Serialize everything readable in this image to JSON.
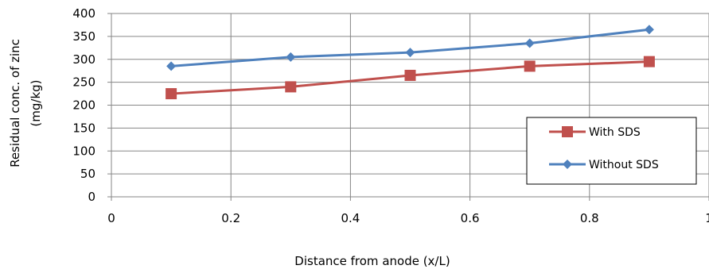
{
  "chart_data": {
    "type": "line",
    "xlabel": "Distance from anode (x/L)",
    "ylabel_lines": [
      "Residual conc. of zinc",
      "(mg/kg)"
    ],
    "xlim": [
      0,
      1
    ],
    "ylim": [
      0,
      400
    ],
    "x_ticks": [
      0,
      0.2,
      0.4,
      0.6,
      0.8,
      1
    ],
    "x_tick_labels": [
      "0",
      "0.2",
      "0.4",
      "0.6",
      "0.8",
      "1"
    ],
    "y_ticks": [
      0,
      50,
      100,
      150,
      200,
      250,
      300,
      350,
      400
    ],
    "y_tick_labels": [
      "0",
      "50",
      "100",
      "150",
      "200",
      "250",
      "300",
      "350",
      "400"
    ],
    "grid": true,
    "legend_position": "lower-right",
    "series": [
      {
        "name": "With SDS",
        "color": "#c0504d",
        "marker": "square",
        "x": [
          0.1,
          0.3,
          0.5,
          0.7,
          0.9
        ],
        "values": [
          225,
          240,
          265,
          285,
          295
        ]
      },
      {
        "name": "Without SDS",
        "color": "#4f81bd",
        "marker": "diamond",
        "x": [
          0.1,
          0.3,
          0.5,
          0.7,
          0.9
        ],
        "values": [
          285,
          305,
          315,
          335,
          365
        ]
      }
    ]
  }
}
